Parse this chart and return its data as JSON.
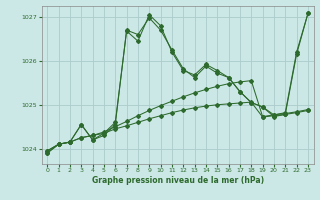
{
  "bg_color": "#cce8e6",
  "grid_color": "#aaccca",
  "line_color": "#2d6a2d",
  "title": "Graphe pression niveau de la mer (hPa)",
  "ylim": [
    1023.65,
    1027.25
  ],
  "xlim": [
    -0.5,
    23.5
  ],
  "yticks": [
    1024,
    1025,
    1026,
    1027
  ],
  "xticks": [
    0,
    1,
    2,
    3,
    4,
    5,
    6,
    7,
    8,
    9,
    10,
    11,
    12,
    13,
    14,
    15,
    16,
    17,
    18,
    19,
    20,
    21,
    22,
    23
  ],
  "series1_x": [
    0,
    1,
    2,
    3,
    4,
    5,
    6,
    7,
    8,
    9,
    10,
    11,
    12,
    13,
    14,
    15,
    16,
    17,
    18,
    19,
    20,
    21,
    22,
    23
  ],
  "series1_y": [
    1023.95,
    1024.1,
    1024.15,
    1024.25,
    1024.3,
    1024.35,
    1024.45,
    1024.52,
    1024.6,
    1024.68,
    1024.75,
    1024.82,
    1024.88,
    1024.93,
    1024.97,
    1025.0,
    1025.02,
    1025.04,
    1025.06,
    1024.72,
    1024.75,
    1024.78,
    1024.82,
    1024.87
  ],
  "series2_x": [
    0,
    1,
    2,
    3,
    4,
    5,
    6,
    7,
    8,
    9,
    10,
    11,
    12,
    13,
    14,
    15,
    16,
    17,
    18,
    19,
    20,
    21,
    22,
    23
  ],
  "series2_y": [
    1023.95,
    1024.1,
    1024.15,
    1024.25,
    1024.3,
    1024.38,
    1024.5,
    1024.62,
    1024.75,
    1024.87,
    1024.98,
    1025.08,
    1025.18,
    1025.27,
    1025.35,
    1025.42,
    1025.48,
    1025.52,
    1025.55,
    1024.73,
    1024.77,
    1024.8,
    1024.84,
    1024.89
  ],
  "series3_x": [
    0,
    1,
    2,
    3,
    4,
    5,
    6,
    7,
    8,
    9,
    10,
    11,
    12,
    13,
    14,
    15,
    16,
    17,
    18,
    19,
    20,
    21,
    22,
    23
  ],
  "series3_y": [
    1023.9,
    1024.1,
    1024.15,
    1024.55,
    1024.2,
    1024.3,
    1024.55,
    1026.7,
    1026.6,
    1026.98,
    1026.7,
    1026.25,
    1025.82,
    1025.62,
    1025.88,
    1025.72,
    1025.62,
    1025.3,
    1025.05,
    1024.95,
    1024.73,
    1024.78,
    1026.15,
    1027.08
  ],
  "series4_x": [
    0,
    1,
    2,
    3,
    4,
    5,
    6,
    7,
    8,
    9,
    10,
    11,
    12,
    13,
    14,
    15,
    16,
    17,
    18,
    19,
    20,
    21,
    22,
    23
  ],
  "series4_y": [
    1023.9,
    1024.1,
    1024.15,
    1024.55,
    1024.2,
    1024.35,
    1024.6,
    1026.68,
    1026.45,
    1027.05,
    1026.8,
    1026.2,
    1025.78,
    1025.68,
    1025.92,
    1025.78,
    1025.62,
    1025.3,
    1025.05,
    1024.95,
    1024.77,
    1024.82,
    1026.2,
    1027.08
  ]
}
